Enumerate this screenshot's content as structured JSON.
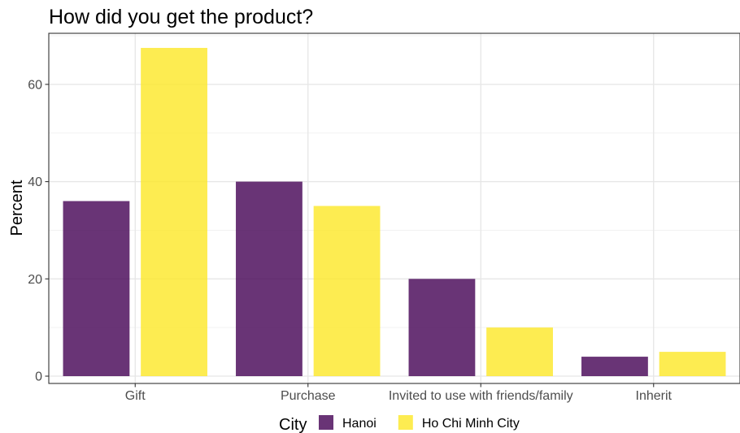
{
  "chart_data": {
    "type": "bar",
    "title": "How did you get the product?",
    "xlabel": "",
    "ylabel": "Percent",
    "categories": [
      "Gift",
      "Purchase",
      "Invited to use with friends/family",
      "Inherit"
    ],
    "series": [
      {
        "name": "Hanoi",
        "color": "#440154",
        "values": [
          36,
          40,
          20,
          4
        ]
      },
      {
        "name": "Ho Chi Minh City",
        "color": "#FDE725",
        "values": [
          67.5,
          35,
          10,
          5
        ]
      }
    ],
    "bar_opacity": 0.8,
    "ylim": [
      -1.5,
      70.5
    ],
    "yticks": [
      "0",
      "20",
      "40",
      "60"
    ],
    "ytick_values": [
      0,
      20,
      40,
      60
    ],
    "grid": true,
    "legend": {
      "title": "City",
      "position": "bottom"
    }
  }
}
